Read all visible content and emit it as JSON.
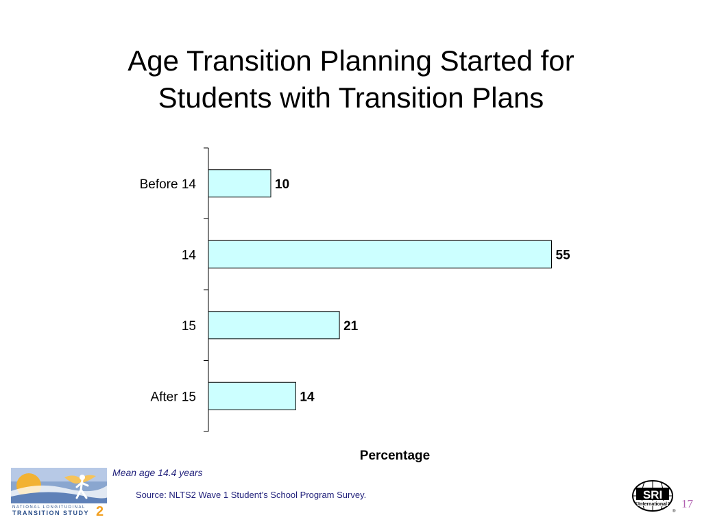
{
  "header": {
    "title_line1": "Age Transition Planning Started for",
    "title_line2": "Students with Transition Plans"
  },
  "chart_data": {
    "type": "bar",
    "orientation": "horizontal",
    "categories": [
      "Before 14",
      "14",
      "15",
      "After 15"
    ],
    "values": [
      10,
      55,
      21,
      14
    ],
    "data_labels": [
      "10",
      "55",
      "21",
      "14"
    ],
    "title": "Age Transition Planning Started for Students with Transition Plans",
    "xlabel": "Percentage",
    "ylabel": "",
    "xlim": [
      0,
      60
    ],
    "grid": false,
    "bar_color": "#ccffff",
    "bar_edge_color": "#000000"
  },
  "notes": {
    "mean": "Mean age 14.4 years",
    "source": "Source: NLTS2 Wave 1 Student’s School Program Survey."
  },
  "footer": {
    "page_number": "17",
    "nlts_logo_line1": "NATIONAL LONGITUDINAL",
    "nlts_logo_line2": "TRANSITION STUDY",
    "nlts_logo_digit": "2",
    "sri_logo_text": "SRI",
    "sri_logo_subtext": "International"
  }
}
